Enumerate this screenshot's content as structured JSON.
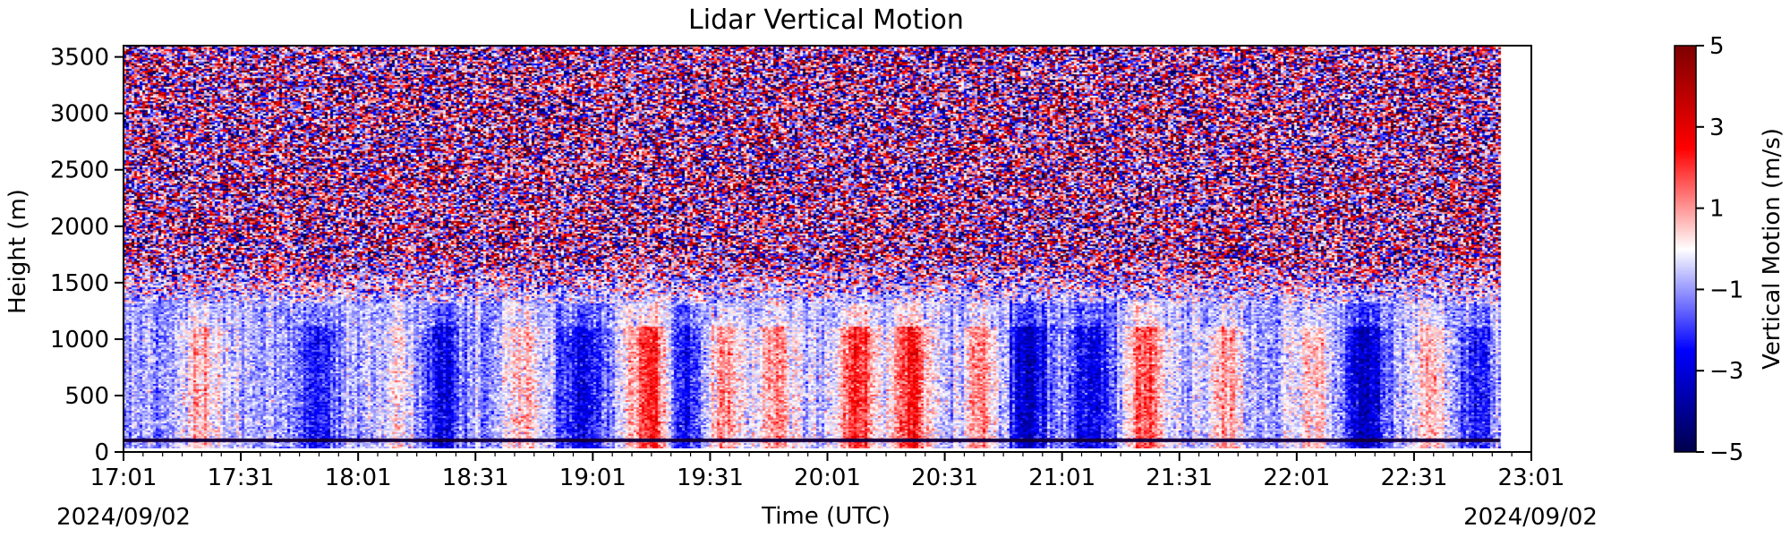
{
  "chart_data": {
    "type": "heatmap",
    "title": "Lidar Vertical Motion",
    "xlabel": "Time (UTC)",
    "ylabel": "Height (m)",
    "x_ticks": [
      "17:01",
      "17:31",
      "18:01",
      "18:31",
      "19:01",
      "19:31",
      "20:01",
      "20:31",
      "21:01",
      "21:31",
      "22:01",
      "22:31",
      "23:01"
    ],
    "x_range": [
      "17:01",
      "23:01"
    ],
    "data_end_time": "22:53",
    "y_ticks": [
      0,
      500,
      1000,
      1500,
      2000,
      2500,
      3000,
      3500
    ],
    "ylim": [
      0,
      3600
    ],
    "date_left": "2024/09/02",
    "date_right": "2024/09/02",
    "colorbar": {
      "label": "Vertical Motion (m/s)",
      "ticks": [
        "5",
        "3",
        "1",
        "−1",
        "−3",
        "−5"
      ],
      "range": [
        -5,
        5
      ],
      "colormap": "seismic",
      "colors": [
        "#00004c",
        "#0000ff",
        "#ffffff",
        "#ff0000",
        "#7f0000"
      ]
    },
    "description": "Noisy random vertical motion above ~1500 m; coherent updraft (red) / downdraft (blue) columns below ~1300 m, strongest updrafts 19:15-21:45 UTC",
    "updraft_events": [
      {
        "time": "17:21",
        "strength": 1.6
      },
      {
        "time": "18:11",
        "strength": 1.0
      },
      {
        "time": "18:43",
        "strength": 1.4
      },
      {
        "time": "19:15",
        "strength": 3.2
      },
      {
        "time": "19:34",
        "strength": 2.2
      },
      {
        "time": "19:48",
        "strength": 2.0
      },
      {
        "time": "20:08",
        "strength": 3.2
      },
      {
        "time": "20:22",
        "strength": 3.0
      },
      {
        "time": "20:40",
        "strength": 2.0
      },
      {
        "time": "21:22",
        "strength": 2.8
      },
      {
        "time": "21:42",
        "strength": 2.0
      },
      {
        "time": "22:05",
        "strength": 1.4
      },
      {
        "time": "22:36",
        "strength": 1.6
      }
    ],
    "downdraft_events": [
      {
        "time": "17:50",
        "strength": -1.8
      },
      {
        "time": "18:22",
        "strength": -2.0
      },
      {
        "time": "18:58",
        "strength": -2.0
      },
      {
        "time": "19:25",
        "strength": -1.8
      },
      {
        "time": "20:52",
        "strength": -2.4
      },
      {
        "time": "21:08",
        "strength": -1.8
      },
      {
        "time": "22:18",
        "strength": -2.4
      },
      {
        "time": "22:46",
        "strength": -1.6
      }
    ]
  }
}
